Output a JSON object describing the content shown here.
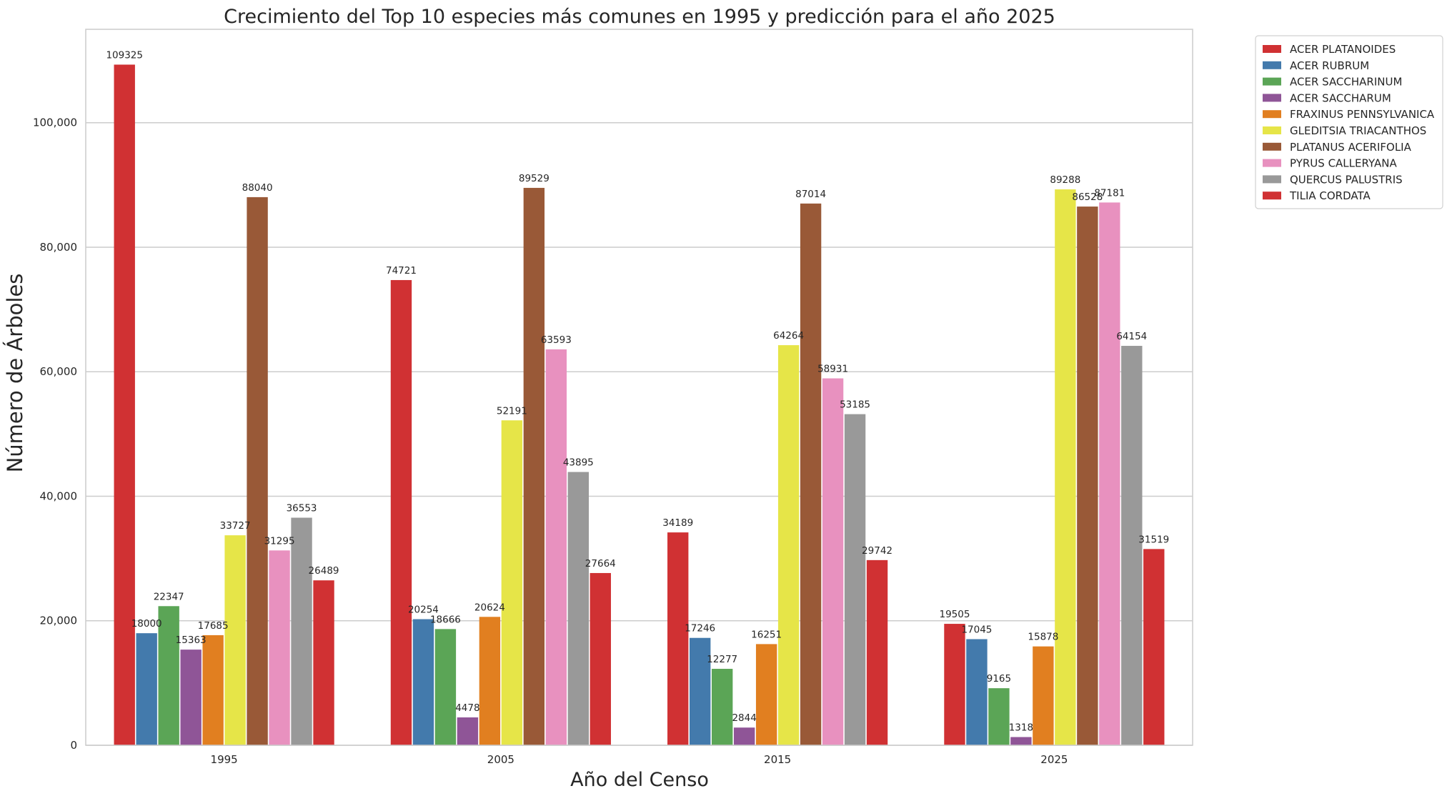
{
  "chart_data": {
    "type": "bar",
    "title": "Crecimiento del Top 10 especies más comunes en 1995 y predicción para el año 2025",
    "xlabel": "Año del Censo",
    "ylabel": "Número de Árboles",
    "categories": [
      "1995",
      "2005",
      "2015",
      "2025"
    ],
    "ylim": [
      0,
      115000
    ],
    "yticks": [
      0,
      20000,
      40000,
      60000,
      80000,
      100000
    ],
    "ytick_labels": [
      "0",
      "20,000",
      "40,000",
      "60,000",
      "80,000",
      "100,000"
    ],
    "grid": "horizontal",
    "legend_position": "outside top-right",
    "series": [
      {
        "name": "ACER PLATANOIDES",
        "color": "#d03133",
        "values": [
          109325,
          74721,
          34189,
          19505
        ]
      },
      {
        "name": "ACER RUBRUM",
        "color": "#437aac",
        "values": [
          18000,
          20254,
          17246,
          17045
        ]
      },
      {
        "name": "ACER SACCHARINUM",
        "color": "#5ba556",
        "values": [
          22347,
          18666,
          12277,
          9165
        ]
      },
      {
        "name": "ACER SACCHARUM",
        "color": "#8f5597",
        "values": [
          15363,
          4478,
          2844,
          1318
        ]
      },
      {
        "name": "FRAXINUS PENNSYLVANICA",
        "color": "#e17f20",
        "values": [
          17685,
          20624,
          16251,
          15878
        ]
      },
      {
        "name": "GLEDITSIA TRIACANTHOS",
        "color": "#e6e548",
        "values": [
          33727,
          52191,
          64264,
          89288
        ]
      },
      {
        "name": "PLATANUS ACERIFOLIA",
        "color": "#995937",
        "values": [
          88040,
          89529,
          87014,
          86528
        ]
      },
      {
        "name": "PYRUS CALLERYANA",
        "color": "#e891bf",
        "values": [
          31295,
          63593,
          58931,
          87181
        ]
      },
      {
        "name": "QUERCUS PALUSTRIS",
        "color": "#999999",
        "values": [
          36553,
          43895,
          53185,
          64154
        ]
      },
      {
        "name": "TILIA CORDATA",
        "color": "#d03133",
        "values": [
          26489,
          27664,
          29742,
          31519
        ]
      }
    ]
  }
}
